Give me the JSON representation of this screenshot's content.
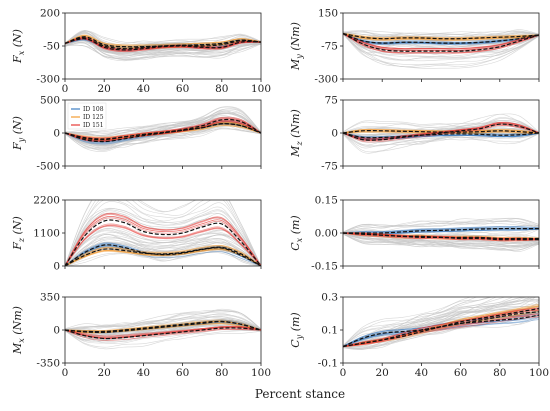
{
  "chart_data": [
    {
      "type": "line",
      "ylabel": "F_x (N)",
      "ylabel_main": "F",
      "ylabel_sub": "x",
      "ylabel_unit": "(N)",
      "ylim": [
        -300,
        200
      ],
      "yticks": [
        "200",
        "-50",
        "-300"
      ],
      "xlim": [
        0,
        100
      ],
      "xticks": [
        "0",
        "20",
        "40",
        "60",
        "80",
        "100"
      ],
      "show_xtick_labels": true,
      "x": [
        0,
        10,
        20,
        30,
        40,
        50,
        60,
        70,
        80,
        90,
        100
      ],
      "series": [
        {
          "name": "ID 108",
          "color": "#3b7dc1",
          "values": [
            -30,
            5,
            -50,
            -70,
            -60,
            -50,
            -45,
            -50,
            -40,
            -10,
            -20
          ]
        },
        {
          "name": "ID 125",
          "color": "#f39c32",
          "values": [
            -30,
            20,
            -40,
            -55,
            -55,
            -50,
            -45,
            -40,
            -30,
            -5,
            -20
          ]
        },
        {
          "name": "ID 151",
          "color": "#e53935",
          "values": [
            -30,
            10,
            -60,
            -80,
            -70,
            -55,
            -50,
            -60,
            -60,
            -20,
            -20
          ]
        }
      ]
    },
    {
      "type": "line",
      "ylabel": "M_y (Nm)",
      "ylabel_main": "M",
      "ylabel_sub": "y",
      "ylabel_unit": "(Nm)",
      "ylim": [
        -300,
        150
      ],
      "yticks": [
        "150",
        "-75",
        "-300"
      ],
      "xlim": [
        0,
        100
      ],
      "xticks": [
        "0",
        "20",
        "40",
        "60",
        "80",
        "100"
      ],
      "show_xtick_labels": false,
      "x": [
        0,
        10,
        20,
        30,
        40,
        50,
        60,
        70,
        80,
        90,
        100
      ],
      "series": [
        {
          "name": "ID 108",
          "color": "#3b7dc1",
          "values": [
            10,
            -40,
            -55,
            -50,
            -50,
            -55,
            -55,
            -50,
            -40,
            -25,
            0
          ]
        },
        {
          "name": "ID 125",
          "color": "#f39c32",
          "values": [
            10,
            -15,
            -25,
            -20,
            -20,
            -25,
            -25,
            -20,
            -15,
            -10,
            0
          ]
        },
        {
          "name": "ID 151",
          "color": "#e53935",
          "values": [
            10,
            -60,
            -100,
            -110,
            -110,
            -110,
            -110,
            -100,
            -80,
            -40,
            0
          ]
        }
      ]
    },
    {
      "type": "line",
      "ylabel": "F_y (N)",
      "ylabel_main": "F",
      "ylabel_sub": "y",
      "ylabel_unit": "(N)",
      "ylim": [
        -500,
        500
      ],
      "yticks": [
        "500",
        "0",
        "-500"
      ],
      "xlim": [
        0,
        100
      ],
      "xticks": [
        "0",
        "20",
        "40",
        "60",
        "80",
        "100"
      ],
      "show_xtick_labels": false,
      "legend": [
        "ID 108",
        "ID 125",
        "ID 151"
      ],
      "x": [
        0,
        10,
        20,
        30,
        40,
        50,
        60,
        70,
        80,
        90,
        100
      ],
      "series": [
        {
          "name": "ID 108",
          "color": "#3b7dc1",
          "values": [
            0,
            -100,
            -130,
            -90,
            -40,
            0,
            40,
            80,
            140,
            110,
            0
          ]
        },
        {
          "name": "ID 125",
          "color": "#f39c32",
          "values": [
            0,
            -70,
            -90,
            -60,
            -25,
            5,
            40,
            80,
            140,
            110,
            0
          ]
        },
        {
          "name": "ID 151",
          "color": "#e53935",
          "values": [
            0,
            -80,
            -100,
            -60,
            -20,
            10,
            50,
            110,
            200,
            170,
            0
          ]
        }
      ]
    },
    {
      "type": "line",
      "ylabel": "M_z (Nm)",
      "ylabel_main": "M",
      "ylabel_sub": "z",
      "ylabel_unit": "(Nm)",
      "ylim": [
        -75,
        75
      ],
      "yticks": [
        "75",
        "0",
        "-75"
      ],
      "xlim": [
        0,
        100
      ],
      "xticks": [
        "0",
        "20",
        "40",
        "60",
        "80",
        "100"
      ],
      "show_xtick_labels": false,
      "x": [
        0,
        10,
        20,
        30,
        40,
        50,
        60,
        70,
        80,
        90,
        100
      ],
      "series": [
        {
          "name": "ID 108",
          "color": "#3b7dc1",
          "values": [
            0,
            -10,
            -10,
            -8,
            -5,
            -3,
            -2,
            -3,
            -5,
            -4,
            0
          ]
        },
        {
          "name": "ID 125",
          "color": "#f39c32",
          "values": [
            0,
            5,
            5,
            4,
            3,
            2,
            2,
            3,
            5,
            3,
            0
          ]
        },
        {
          "name": "ID 151",
          "color": "#e53935",
          "values": [
            0,
            -15,
            -15,
            -10,
            -5,
            0,
            5,
            10,
            20,
            15,
            0
          ]
        }
      ]
    },
    {
      "type": "line",
      "ylabel": "F_z (N)",
      "ylabel_main": "F",
      "ylabel_sub": "z",
      "ylabel_unit": "(N)",
      "ylim": [
        0,
        2200
      ],
      "yticks": [
        "2200",
        "1100",
        "0"
      ],
      "xlim": [
        0,
        100
      ],
      "xticks": [
        "0",
        "20",
        "40",
        "60",
        "80",
        "100"
      ],
      "show_xtick_labels": false,
      "x": [
        0,
        10,
        20,
        30,
        40,
        50,
        60,
        70,
        80,
        90,
        100
      ],
      "series": [
        {
          "name": "ID 108",
          "color": "#3b7dc1",
          "values": [
            0,
            450,
            700,
            620,
            450,
            380,
            430,
            550,
            600,
            350,
            0
          ]
        },
        {
          "name": "ID 125",
          "color": "#f39c32",
          "values": [
            0,
            350,
            560,
            520,
            430,
            400,
            450,
            560,
            620,
            400,
            0
          ]
        },
        {
          "name": "ID 151",
          "color": "#e53935",
          "values": [
            0,
            1000,
            1500,
            1450,
            1150,
            1050,
            1100,
            1300,
            1400,
            800,
            0
          ]
        }
      ]
    },
    {
      "type": "line",
      "ylabel": "C_x (m)",
      "ylabel_main": "C",
      "ylabel_sub": "x",
      "ylabel_unit": "(m)",
      "ylim": [
        -0.15,
        0.15
      ],
      "yticks": [
        "0.15",
        "0.00",
        "-0.15"
      ],
      "xlim": [
        0,
        100
      ],
      "xticks": [
        "0",
        "20",
        "40",
        "60",
        "80",
        "100"
      ],
      "show_xtick_labels": false,
      "x": [
        0,
        10,
        20,
        30,
        40,
        50,
        60,
        70,
        80,
        90,
        100
      ],
      "series": [
        {
          "name": "ID 108",
          "color": "#3b7dc1",
          "values": [
            0,
            0,
            0,
            0.005,
            0.01,
            0.012,
            0.015,
            0.018,
            0.02,
            0.02,
            0.02
          ]
        },
        {
          "name": "ID 125",
          "color": "#f39c32",
          "values": [
            0,
            -0.005,
            -0.01,
            -0.015,
            -0.015,
            -0.02,
            -0.02,
            -0.02,
            -0.025,
            -0.025,
            -0.025
          ]
        },
        {
          "name": "ID 151",
          "color": "#e53935",
          "values": [
            0,
            -0.005,
            -0.01,
            -0.015,
            -0.02,
            -0.02,
            -0.025,
            -0.025,
            -0.03,
            -0.03,
            -0.03
          ]
        }
      ]
    },
    {
      "type": "line",
      "ylabel": "M_x (Nm)",
      "ylabel_main": "M",
      "ylabel_sub": "x",
      "ylabel_unit": "(Nm)",
      "ylim": [
        -350,
        350
      ],
      "yticks": [
        "350",
        "0",
        "-350"
      ],
      "xlim": [
        0,
        100
      ],
      "xticks": [
        "0",
        "20",
        "40",
        "60",
        "80",
        "100"
      ],
      "show_xtick_labels": true,
      "x": [
        0,
        10,
        20,
        30,
        40,
        50,
        60,
        70,
        80,
        90,
        100
      ],
      "series": [
        {
          "name": "ID 108",
          "color": "#3b7dc1",
          "values": [
            0,
            -20,
            -25,
            -10,
            10,
            30,
            50,
            70,
            90,
            60,
            0
          ]
        },
        {
          "name": "ID 125",
          "color": "#f39c32",
          "values": [
            0,
            -15,
            -15,
            0,
            20,
            40,
            60,
            80,
            90,
            60,
            0
          ]
        },
        {
          "name": "ID 151",
          "color": "#e53935",
          "values": [
            0,
            -60,
            -90,
            -80,
            -60,
            -40,
            -20,
            0,
            20,
            20,
            0
          ]
        }
      ]
    },
    {
      "type": "line",
      "ylabel": "C_y (m)",
      "ylabel_main": "C",
      "ylabel_sub": "y",
      "ylabel_unit": "(m)",
      "ylim": [
        -0.1,
        0.3
      ],
      "yticks": [
        "0.3",
        "0.1",
        "-0.1"
      ],
      "xlim": [
        0,
        100
      ],
      "xticks": [
        "0",
        "20",
        "40",
        "60",
        "80",
        "100"
      ],
      "show_xtick_labels": true,
      "x": [
        0,
        10,
        20,
        30,
        40,
        50,
        60,
        70,
        80,
        90,
        100
      ],
      "series": [
        {
          "name": "ID 108",
          "color": "#3b7dc1",
          "values": [
            0,
            0.05,
            0.08,
            0.09,
            0.1,
            0.12,
            0.14,
            0.15,
            0.16,
            0.17,
            0.19
          ]
        },
        {
          "name": "ID 125",
          "color": "#f39c32",
          "values": [
            0,
            0.02,
            0.04,
            0.06,
            0.09,
            0.12,
            0.15,
            0.17,
            0.19,
            0.21,
            0.23
          ]
        },
        {
          "name": "ID 151",
          "color": "#e53935",
          "values": [
            0,
            0.02,
            0.04,
            0.07,
            0.1,
            0.12,
            0.14,
            0.16,
            0.18,
            0.2,
            0.21
          ]
        }
      ]
    }
  ],
  "figure": {
    "xlabel": "Percent stance"
  }
}
